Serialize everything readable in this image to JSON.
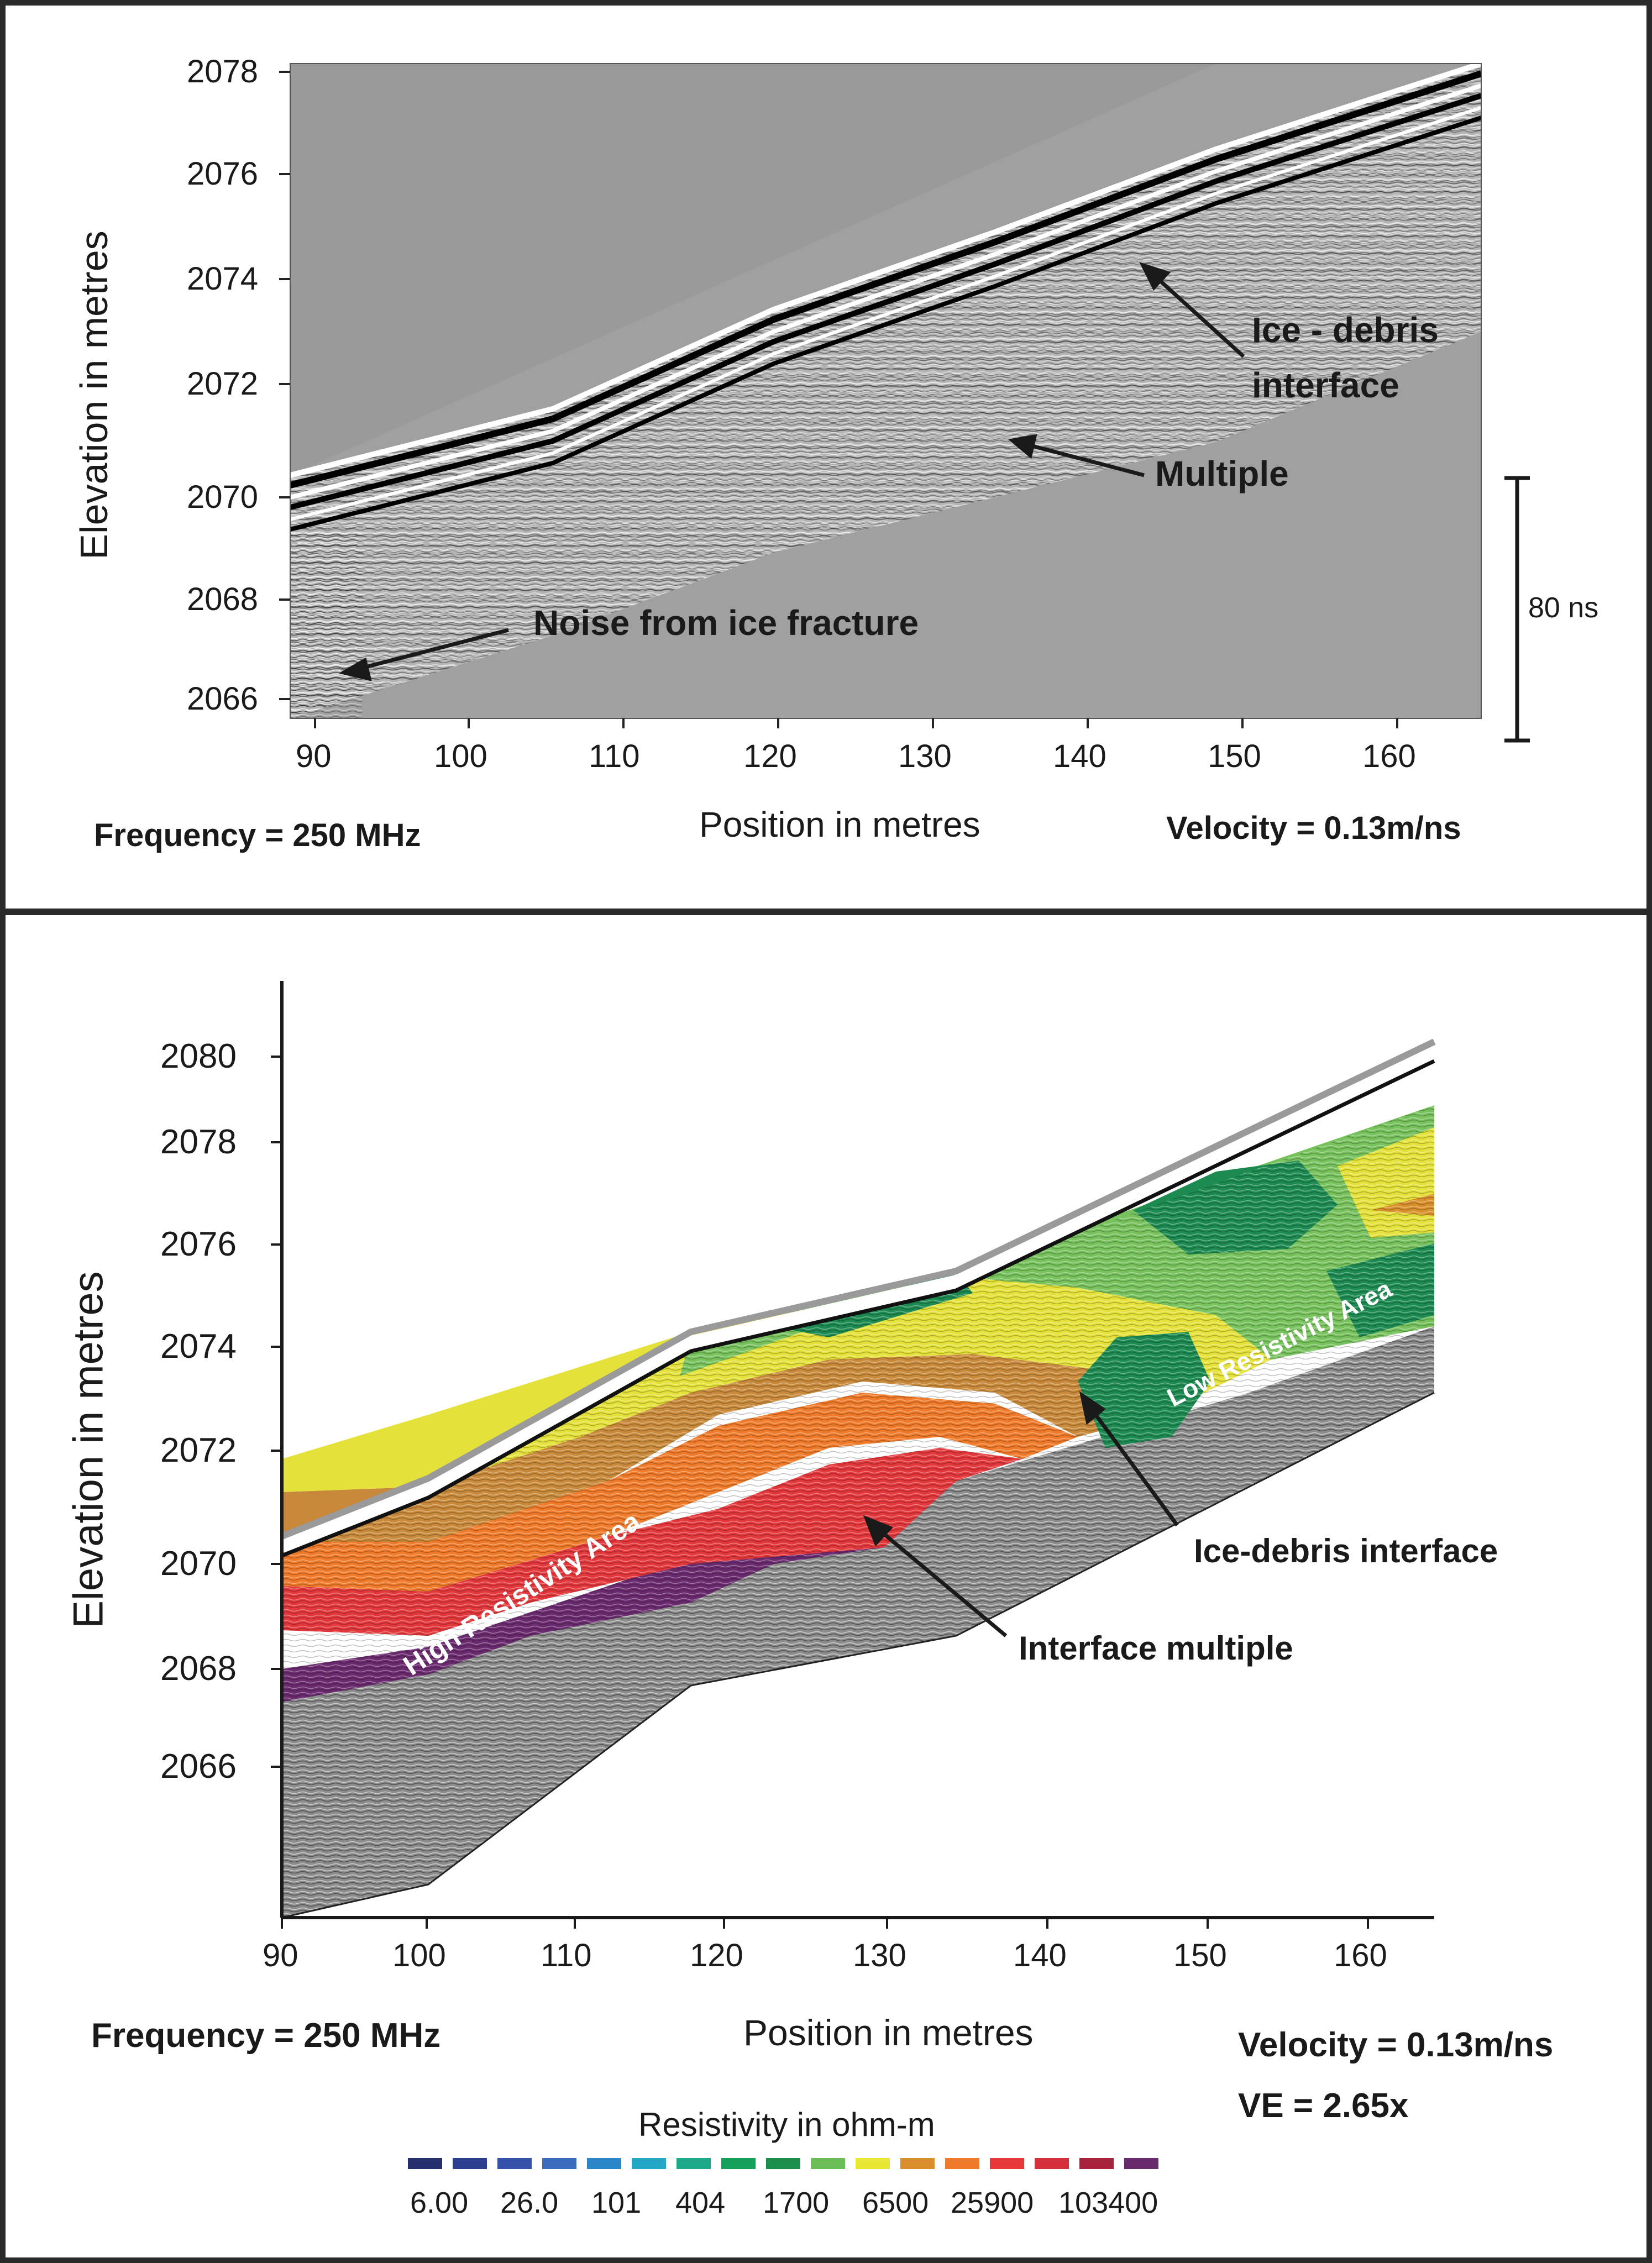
{
  "top_panel": {
    "y_axis_label": "Elevation in metres",
    "x_axis_label": "Position in metres",
    "y_ticks": [
      "2078",
      "2076",
      "2074",
      "2072",
      "2070",
      "2068",
      "2066"
    ],
    "x_ticks": [
      "90",
      "100",
      "110",
      "120",
      "130",
      "140",
      "150",
      "160"
    ],
    "frequency": "Frequency = 250 MHz",
    "velocity": "Velocity = 0.13m/ns",
    "scale_bar_label": "80 ns",
    "annotations": {
      "ice_debris_line1": "Ice - debris",
      "ice_debris_line2": "interface",
      "multiple": "Multiple",
      "noise": "Noise from ice fracture"
    }
  },
  "bottom_panel": {
    "y_axis_label": "Elevation in metres",
    "x_axis_label": "Position in metres",
    "y_ticks": [
      "2080",
      "2078",
      "2076",
      "2074",
      "2072",
      "2070",
      "2068",
      "2066"
    ],
    "x_ticks": [
      "90",
      "100",
      "110",
      "120",
      "130",
      "140",
      "150",
      "160"
    ],
    "frequency": "Frequency = 250 MHz",
    "velocity": "Velocity = 0.13m/ns",
    "ve": "VE = 2.65x",
    "annotations": {
      "high_res": "High Resistivity Area",
      "low_res": "Low Resistivity Area",
      "ice_debris": "Ice-debris interface",
      "interface_multiple": "Interface multiple"
    },
    "legend": {
      "title": "Resistivity in ohm-m",
      "colors": [
        "#262f6e",
        "#2c3f8f",
        "#3552a8",
        "#3b6bbd",
        "#2a86c6",
        "#22a8c4",
        "#1daa8a",
        "#14a05a",
        "#1c8e4c",
        "#6cbf58",
        "#e8e834",
        "#d9902c",
        "#ef7a2a",
        "#e8383a",
        "#d42f3a",
        "#a8223e",
        "#6a2a6e"
      ],
      "labels": [
        "6.00",
        "26.0",
        "101",
        "404",
        "1700",
        "6500",
        "25900",
        "103400"
      ]
    }
  }
}
